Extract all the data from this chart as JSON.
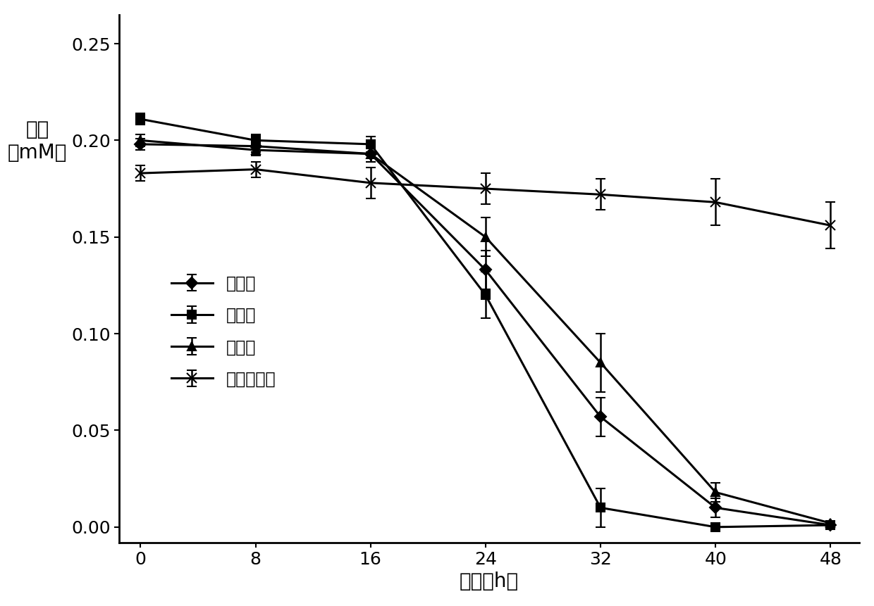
{
  "x": [
    0,
    8,
    16,
    24,
    32,
    40,
    48
  ],
  "series": [
    {
      "label": "甲草胺",
      "y": [
        0.198,
        0.197,
        0.193,
        0.133,
        0.057,
        0.01,
        0.001
      ],
      "yerr": [
        0.003,
        0.003,
        0.004,
        0.01,
        0.01,
        0.005,
        0.001
      ],
      "marker": "D",
      "markersize": 8
    },
    {
      "label": "乙草胺",
      "y": [
        0.211,
        0.2,
        0.198,
        0.12,
        0.01,
        0.0,
        0.001
      ],
      "yerr": [
        0.003,
        0.003,
        0.004,
        0.012,
        0.01,
        0.001,
        0.001
      ],
      "marker": "s",
      "markersize": 8
    },
    {
      "label": "丁草胺",
      "y": [
        0.2,
        0.195,
        0.193,
        0.15,
        0.085,
        0.018,
        0.002
      ],
      "yerr": [
        0.003,
        0.003,
        0.004,
        0.01,
        0.015,
        0.005,
        0.001
      ],
      "marker": "^",
      "markersize": 8
    },
    {
      "label": "异丙甲草胺",
      "y": [
        0.183,
        0.185,
        0.178,
        0.175,
        0.172,
        0.168,
        0.156
      ],
      "yerr": [
        0.004,
        0.004,
        0.008,
        0.008,
        0.008,
        0.012,
        0.012
      ],
      "marker": "x",
      "markersize": 10
    }
  ],
  "xlabel": "时间（h）",
  "ylabel_line1": "浓度",
  "ylabel_line2": "（mM）",
  "xlim": [
    -1.5,
    50
  ],
  "ylim": [
    -0.008,
    0.265
  ],
  "xticks": [
    0,
    8,
    16,
    24,
    32,
    40,
    48
  ],
  "yticks": [
    0,
    0.05,
    0.1,
    0.15,
    0.2,
    0.25
  ],
  "line_color": "#000000",
  "background_color": "#ffffff",
  "fontsize_label": 20,
  "fontsize_tick": 18,
  "fontsize_legend": 17
}
